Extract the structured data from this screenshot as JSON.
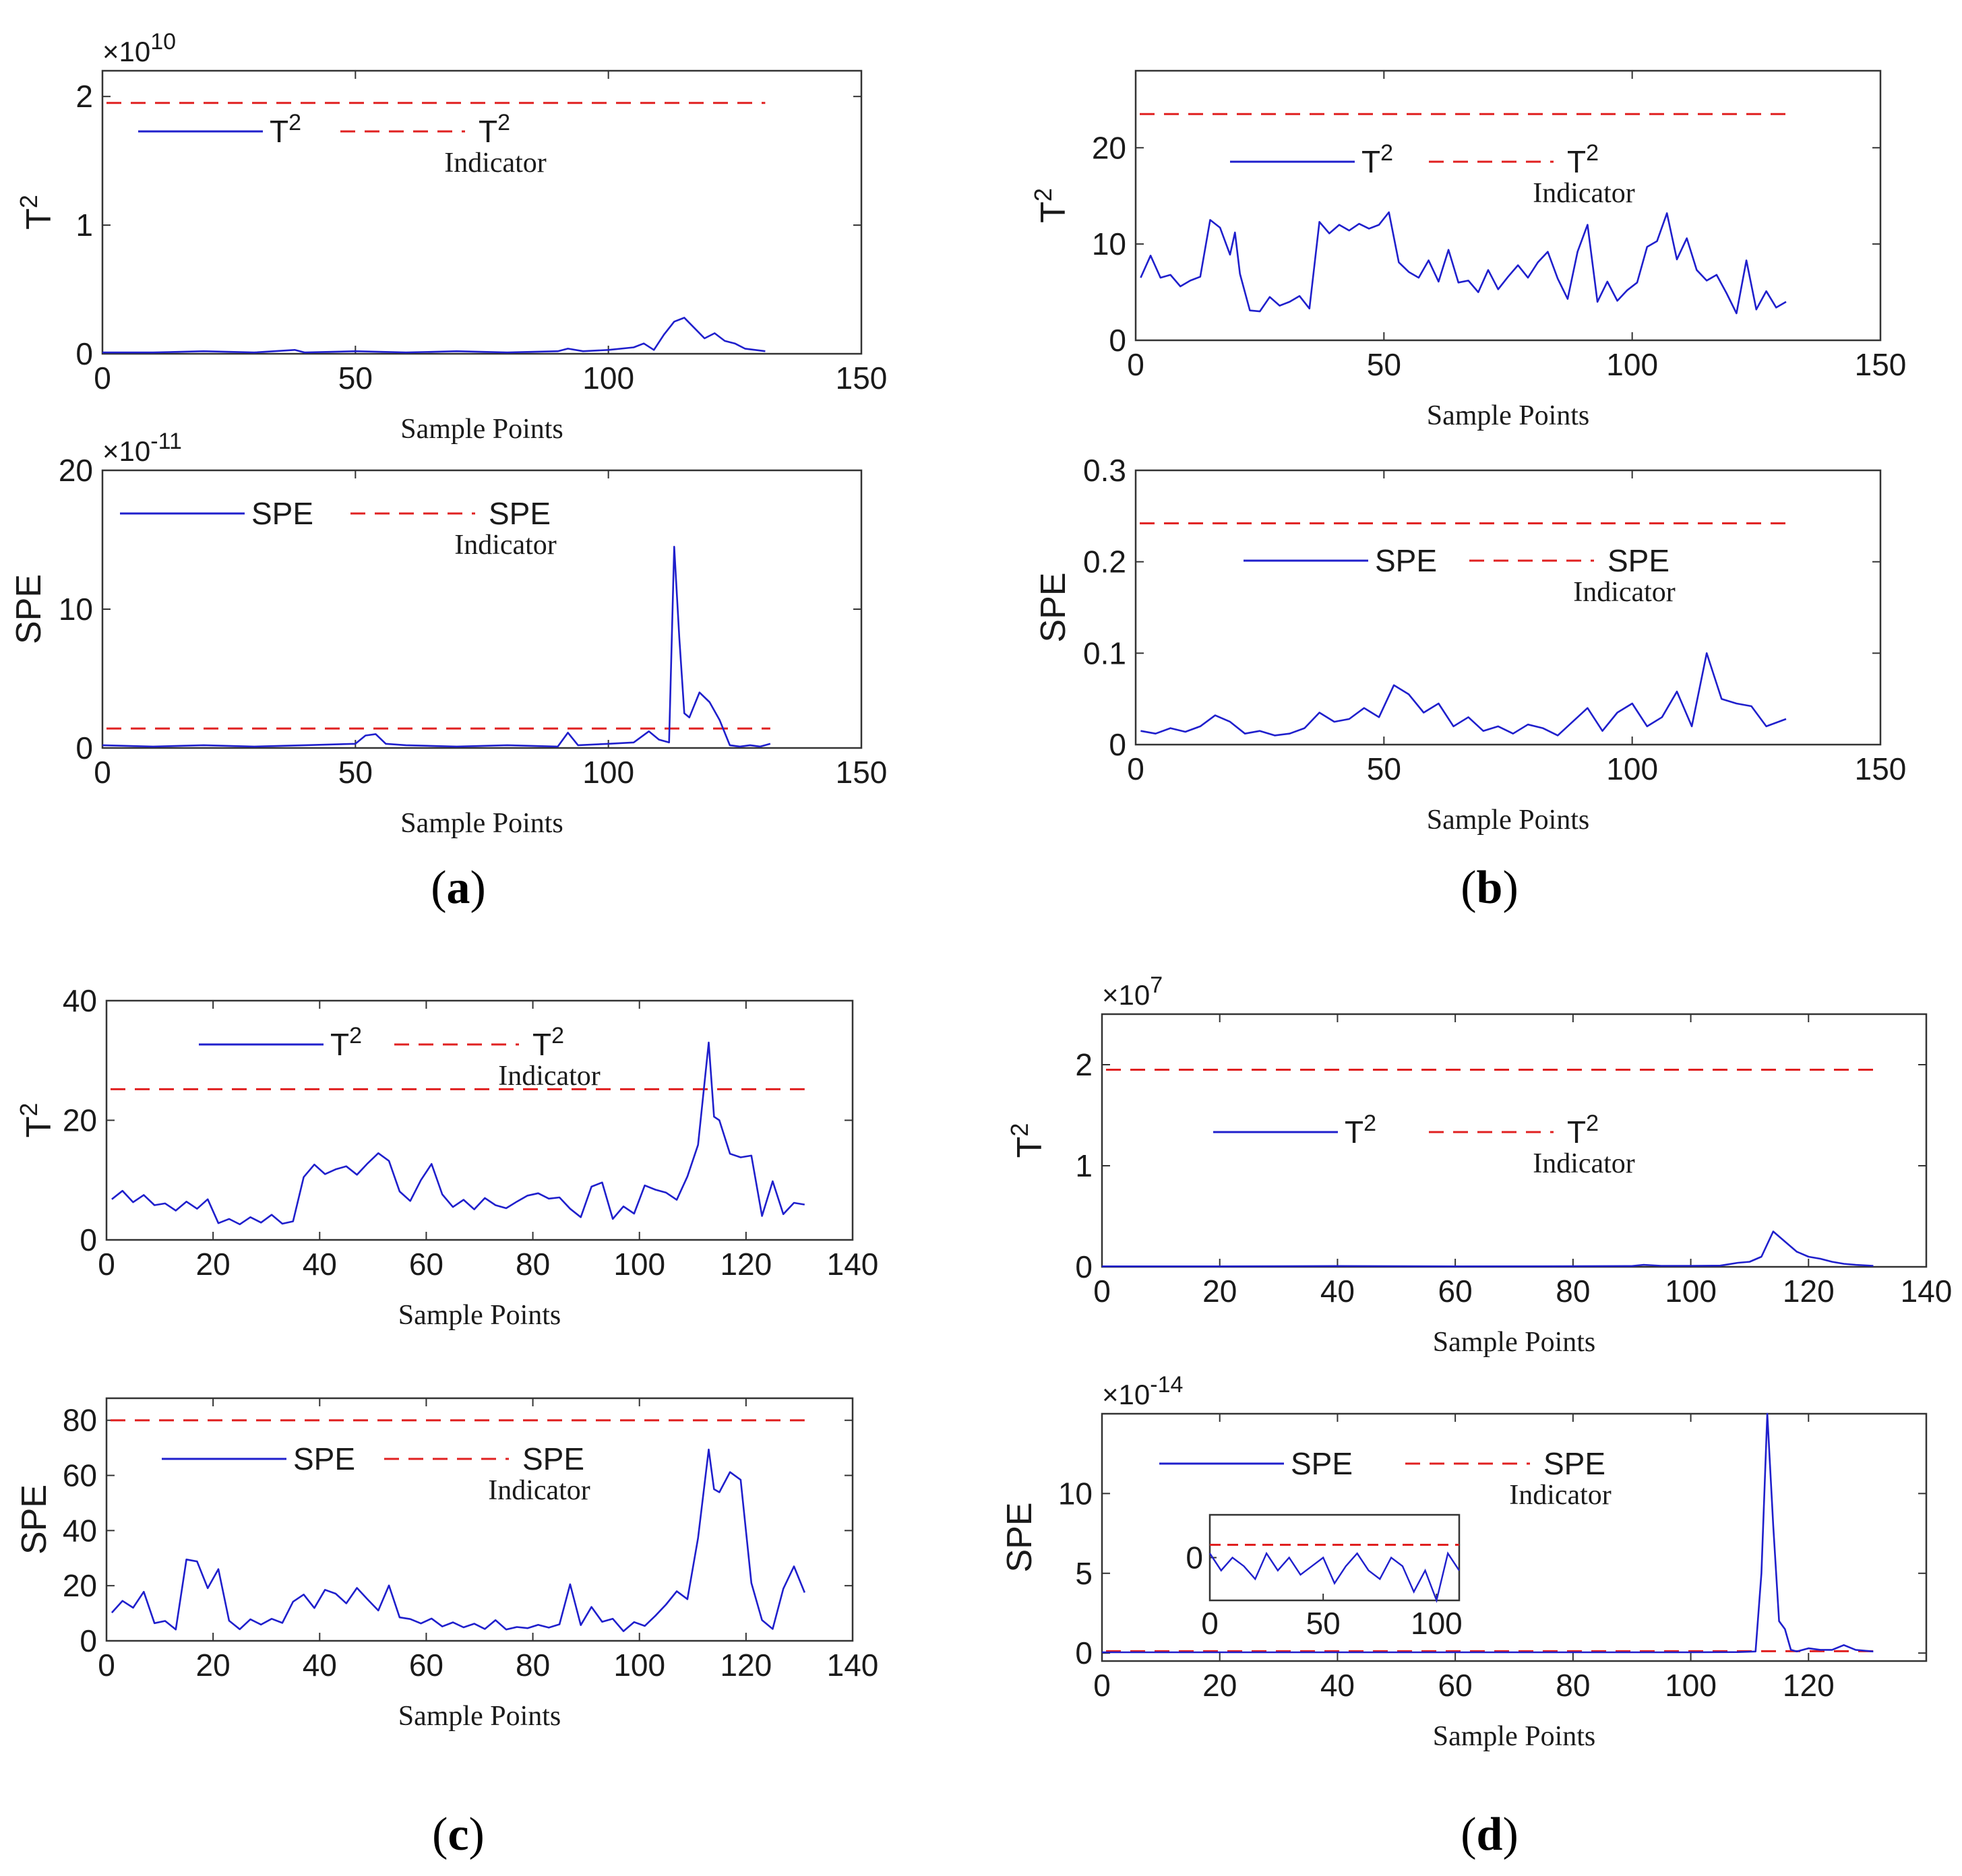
{
  "panel_labels": [
    "a",
    "b",
    "c",
    "d"
  ],
  "colors": {
    "series": "#1f1fcc",
    "indicator": "#e02020",
    "axis": "#333333"
  },
  "chart_data": [
    {
      "type": "line",
      "panel": "a",
      "exponent": "10",
      "xlabel": "Sample Points",
      "ylabel_base": "T",
      "ylabel_sup": "2",
      "xlim": [
        0,
        150
      ],
      "ylim": [
        0,
        2.2
      ],
      "xticks": [
        0,
        50,
        100,
        150
      ],
      "yticks": [
        0,
        1,
        2
      ],
      "legend": {
        "series_base": "T",
        "series_sup": "2",
        "indicator_base": "T",
        "indicator_sup": "2",
        "indicator_sub": "Indicator"
      },
      "series": [
        {
          "name": "T2",
          "x": [
            0,
            10,
            20,
            30,
            38,
            40,
            50,
            60,
            70,
            80,
            90,
            92,
            95,
            100,
            105,
            107,
            109,
            111,
            113,
            115,
            117,
            119,
            121,
            123,
            125,
            127,
            129,
            131
          ],
          "y": [
            0.01,
            0.01,
            0.02,
            0.01,
            0.03,
            0.01,
            0.02,
            0.01,
            0.02,
            0.01,
            0.02,
            0.04,
            0.02,
            0.03,
            0.05,
            0.08,
            0.03,
            0.15,
            0.25,
            0.28,
            0.2,
            0.12,
            0.16,
            0.1,
            0.08,
            0.04,
            0.03,
            0.02
          ]
        }
      ],
      "indicator": 1.95
    },
    {
      "type": "line",
      "panel": "a",
      "exponent": "-11",
      "xlabel": "Sample Points",
      "ylabel_base": "SPE",
      "ylabel_sup": "",
      "xlim": [
        0,
        150
      ],
      "ylim": [
        0,
        20
      ],
      "xticks": [
        0,
        50,
        100,
        150
      ],
      "yticks": [
        0,
        10,
        20
      ],
      "legend": {
        "series_base": "SPE",
        "series_sup": "",
        "indicator_base": "SPE",
        "indicator_sup": "",
        "indicator_sub": "Indicator"
      },
      "series": [
        {
          "name": "SPE",
          "x": [
            0,
            10,
            20,
            30,
            40,
            50,
            52,
            54,
            56,
            60,
            70,
            80,
            90,
            92,
            94,
            100,
            105,
            108,
            110,
            112,
            113,
            114,
            115,
            116,
            118,
            120,
            122,
            124,
            126,
            128,
            130,
            132
          ],
          "y": [
            0.2,
            0.1,
            0.2,
            0.1,
            0.2,
            0.3,
            0.9,
            1.0,
            0.3,
            0.2,
            0.1,
            0.2,
            0.1,
            1.1,
            0.2,
            0.3,
            0.4,
            1.2,
            0.6,
            0.4,
            14.5,
            8.0,
            2.5,
            2.2,
            4.0,
            3.3,
            2.0,
            0.2,
            0.1,
            0.2,
            0.1,
            0.3
          ]
        }
      ],
      "indicator": 1.4
    },
    {
      "type": "line",
      "panel": "b",
      "exponent": "",
      "xlabel": "Sample Points",
      "ylabel_base": "T",
      "ylabel_sup": "2",
      "xlim": [
        0,
        150
      ],
      "ylim": [
        0,
        28
      ],
      "xticks": [
        0,
        50,
        100,
        150
      ],
      "yticks": [
        0,
        10,
        20
      ],
      "legend": {
        "series_base": "T",
        "series_sup": "2",
        "indicator_base": "T",
        "indicator_sup": "2",
        "indicator_sub": "Indicator"
      },
      "series": [
        {
          "name": "T2",
          "x": [
            1,
            3,
            5,
            7,
            9,
            11,
            13,
            15,
            17,
            19,
            20,
            21,
            23,
            25,
            27,
            29,
            31,
            33,
            35,
            37,
            39,
            41,
            43,
            45,
            47,
            49,
            51,
            53,
            55,
            57,
            59,
            61,
            63,
            65,
            67,
            69,
            71,
            73,
            75,
            77,
            79,
            81,
            83,
            85,
            87,
            89,
            91,
            93,
            95,
            97,
            99,
            101,
            103,
            105,
            107,
            109,
            111,
            113,
            115,
            117,
            119,
            121,
            123,
            125,
            127,
            129,
            131
          ],
          "y": [
            6.5,
            8.8,
            6.5,
            6.8,
            5.6,
            6.2,
            6.6,
            12.5,
            11.7,
            8.9,
            11.2,
            6.9,
            3.1,
            3.0,
            4.5,
            3.6,
            4.0,
            4.6,
            3.3,
            12.3,
            11.1,
            12.0,
            11.4,
            12.1,
            11.6,
            12.0,
            13.3,
            8.1,
            7.1,
            6.5,
            8.3,
            6.1,
            9.4,
            6.0,
            6.2,
            5.0,
            7.3,
            5.3,
            6.6,
            7.8,
            6.5,
            8.1,
            9.2,
            6.4,
            4.3,
            9.2,
            12.0,
            4.0,
            6.1,
            4.1,
            5.2,
            6.0,
            9.7,
            10.3,
            13.2,
            8.4,
            10.6,
            7.3,
            6.2,
            6.8,
            4.9,
            2.8,
            8.3,
            3.2,
            5.1,
            3.4,
            4.0
          ]
        }
      ],
      "indicator": 23.5
    },
    {
      "type": "line",
      "panel": "b",
      "exponent": "",
      "xlabel": "Sample Points",
      "ylabel_base": "SPE",
      "ylabel_sup": "",
      "xlim": [
        0,
        150
      ],
      "ylim": [
        0,
        0.3
      ],
      "xticks": [
        0,
        50,
        100,
        150
      ],
      "yticks": [
        0,
        0.1,
        0.2,
        0.3
      ],
      "legend": {
        "series_base": "SPE",
        "series_sup": "",
        "indicator_base": "SPE",
        "indicator_sup": "",
        "indicator_sub": "Indicator"
      },
      "series": [
        {
          "name": "SPE",
          "x": [
            1,
            4,
            7,
            10,
            13,
            16,
            19,
            22,
            25,
            28,
            31,
            34,
            37,
            40,
            43,
            46,
            49,
            52,
            55,
            58,
            61,
            64,
            67,
            70,
            73,
            76,
            79,
            82,
            85,
            88,
            91,
            94,
            97,
            100,
            103,
            106,
            109,
            112,
            115,
            118,
            121,
            124,
            127,
            131
          ],
          "y": [
            0.015,
            0.012,
            0.018,
            0.014,
            0.02,
            0.032,
            0.025,
            0.012,
            0.015,
            0.01,
            0.012,
            0.018,
            0.035,
            0.025,
            0.028,
            0.04,
            0.03,
            0.065,
            0.055,
            0.035,
            0.045,
            0.02,
            0.03,
            0.015,
            0.02,
            0.012,
            0.022,
            0.018,
            0.01,
            0.025,
            0.04,
            0.015,
            0.035,
            0.045,
            0.02,
            0.03,
            0.058,
            0.02,
            0.1,
            0.05,
            0.045,
            0.042,
            0.02,
            0.028
          ]
        }
      ],
      "indicator": 0.242
    },
    {
      "type": "line",
      "panel": "c",
      "exponent": "",
      "xlabel": "Sample Points",
      "ylabel_base": "T",
      "ylabel_sup": "2",
      "xlim": [
        0,
        140
      ],
      "ylim": [
        0,
        40
      ],
      "xticks": [
        0,
        20,
        40,
        60,
        80,
        100,
        120,
        140
      ],
      "yticks": [
        0,
        20,
        40
      ],
      "legend": {
        "series_base": "T",
        "series_sup": "2",
        "indicator_base": "T",
        "indicator_sup": "2",
        "indicator_sub": "Indicator"
      },
      "series": [
        {
          "name": "T2",
          "x": [
            1,
            3,
            5,
            7,
            9,
            11,
            13,
            15,
            17,
            19,
            21,
            23,
            25,
            27,
            29,
            31,
            33,
            35,
            37,
            39,
            41,
            43,
            45,
            47,
            49,
            51,
            53,
            55,
            57,
            59,
            61,
            63,
            65,
            67,
            69,
            71,
            73,
            75,
            77,
            79,
            81,
            83,
            85,
            87,
            89,
            91,
            93,
            95,
            97,
            99,
            101,
            103,
            105,
            107,
            109,
            111,
            113,
            114,
            115,
            117,
            119,
            121,
            123,
            125,
            127,
            129,
            131
          ],
          "y": [
            6.8,
            8.2,
            6.3,
            7.5,
            5.8,
            6.1,
            4.9,
            6.4,
            5.2,
            6.8,
            2.8,
            3.5,
            2.6,
            3.8,
            2.9,
            4.2,
            2.7,
            3.1,
            10.5,
            12.6,
            11.0,
            11.8,
            12.3,
            10.9,
            12.8,
            14.5,
            13.2,
            8.1,
            6.5,
            10.0,
            12.7,
            7.6,
            5.5,
            6.7,
            5.1,
            7.0,
            5.8,
            5.3,
            6.4,
            7.4,
            7.8,
            6.9,
            7.1,
            5.2,
            3.8,
            8.9,
            9.6,
            3.5,
            5.6,
            4.4,
            9.1,
            8.4,
            7.9,
            6.7,
            10.6,
            15.9,
            33.0,
            20.6,
            20.0,
            14.4,
            13.8,
            14.1,
            4.0,
            9.8,
            4.3,
            6.2,
            5.9
          ]
        }
      ],
      "indicator": 25.2
    },
    {
      "type": "line",
      "panel": "c",
      "exponent": "",
      "xlabel": "Sample Points",
      "ylabel_base": "SPE",
      "ylabel_sup": "",
      "xlim": [
        0,
        140
      ],
      "ylim": [
        0,
        88
      ],
      "xticks": [
        0,
        20,
        40,
        60,
        80,
        100,
        120,
        140
      ],
      "yticks": [
        0,
        20,
        40,
        60,
        80
      ],
      "legend": {
        "series_base": "SPE",
        "series_sup": "",
        "indicator_base": "SPE",
        "indicator_sup": "",
        "indicator_sub": "Indicator"
      },
      "series": [
        {
          "name": "SPE",
          "x": [
            1,
            3,
            5,
            7,
            9,
            11,
            13,
            15,
            17,
            19,
            21,
            23,
            25,
            27,
            29,
            31,
            33,
            35,
            37,
            39,
            41,
            43,
            45,
            47,
            49,
            51,
            53,
            55,
            57,
            59,
            61,
            63,
            65,
            67,
            69,
            71,
            73,
            75,
            77,
            79,
            81,
            83,
            85,
            87,
            89,
            91,
            93,
            95,
            97,
            99,
            101,
            103,
            105,
            107,
            109,
            111,
            113,
            114,
            115,
            117,
            119,
            121,
            123,
            125,
            127,
            129,
            131
          ],
          "y": [
            10.2,
            14.5,
            12.0,
            17.8,
            6.4,
            7.2,
            4.1,
            29.5,
            28.8,
            19.1,
            26.0,
            7.3,
            4.2,
            7.8,
            5.9,
            8.0,
            6.5,
            14.2,
            16.8,
            11.9,
            18.5,
            17.1,
            13.6,
            19.2,
            15.0,
            11.0,
            20.1,
            8.5,
            7.9,
            6.3,
            8.1,
            5.2,
            6.7,
            4.9,
            6.2,
            4.3,
            7.5,
            4.1,
            5.0,
            4.6,
            5.8,
            4.8,
            6.0,
            20.5,
            5.7,
            12.3,
            6.9,
            8.0,
            3.5,
            6.8,
            5.4,
            9.1,
            13.2,
            18.0,
            15.1,
            37.3,
            69.4,
            55.0,
            53.9,
            61.2,
            58.4,
            21.0,
            7.5,
            4.3,
            18.9,
            27.0,
            17.5
          ]
        }
      ],
      "indicator": 80
    },
    {
      "type": "line",
      "panel": "d",
      "exponent": "7",
      "xlabel": "Sample Points",
      "ylabel_base": "T",
      "ylabel_sup": "2",
      "xlim": [
        0,
        140
      ],
      "ylim": [
        0,
        2.5
      ],
      "xticks": [
        0,
        20,
        40,
        60,
        80,
        100,
        120,
        140
      ],
      "yticks": [
        0,
        1,
        2
      ],
      "legend": {
        "series_base": "T",
        "series_sup": "2",
        "indicator_base": "T",
        "indicator_sup": "2",
        "indicator_sub": "Indicator"
      },
      "series": [
        {
          "name": "T2",
          "x": [
            0,
            20,
            40,
            60,
            80,
            90,
            92,
            95,
            100,
            105,
            108,
            110,
            112,
            114,
            116,
            118,
            120,
            122,
            124,
            126,
            128,
            131
          ],
          "y": [
            0.005,
            0.005,
            0.008,
            0.005,
            0.006,
            0.008,
            0.02,
            0.01,
            0.01,
            0.012,
            0.04,
            0.05,
            0.1,
            0.35,
            0.25,
            0.15,
            0.1,
            0.08,
            0.05,
            0.03,
            0.02,
            0.01
          ]
        }
      ],
      "indicator": 1.95
    },
    {
      "type": "line",
      "panel": "d",
      "exponent": "-14",
      "xlabel": "Sample Points",
      "ylabel_base": "SPE",
      "ylabel_sup": "",
      "xlim": [
        0,
        140
      ],
      "ylim": [
        -0.5,
        15
      ],
      "xticks": [
        0,
        20,
        40,
        60,
        80,
        100,
        120
      ],
      "yticks": [
        0,
        5,
        10
      ],
      "legend": {
        "series_base": "SPE",
        "series_sup": "",
        "indicator_base": "SPE",
        "indicator_sup": "",
        "indicator_sub": "Indicator"
      },
      "series": [
        {
          "name": "SPE",
          "x": [
            0,
            20,
            40,
            60,
            80,
            100,
            108,
            111,
            112,
            113,
            114,
            115,
            116,
            117,
            118,
            120,
            122,
            124,
            126,
            128,
            131
          ],
          "y": [
            0.05,
            0.05,
            0.05,
            0.05,
            0.05,
            0.05,
            0.06,
            0.1,
            5.0,
            15.0,
            8.0,
            2.0,
            1.5,
            0.2,
            0.1,
            0.3,
            0.2,
            0.2,
            0.5,
            0.2,
            0.1
          ]
        }
      ],
      "indicator": 0.12,
      "inset": {
        "xlim": [
          0,
          110
        ],
        "ylim": [
          -1,
          1
        ],
        "xticks": [
          0,
          50,
          100
        ],
        "yticks": [
          0
        ],
        "series_x": [
          0,
          5,
          10,
          15,
          20,
          25,
          30,
          35,
          40,
          45,
          50,
          55,
          60,
          65,
          70,
          75,
          80,
          85,
          90,
          95,
          100,
          105,
          110
        ],
        "series_y": [
          0.1,
          -0.3,
          0.0,
          -0.2,
          -0.5,
          0.1,
          -0.3,
          0.0,
          -0.4,
          -0.2,
          0.0,
          -0.6,
          -0.2,
          0.1,
          -0.3,
          -0.5,
          0.0,
          -0.2,
          -0.8,
          -0.3,
          -1.0,
          0.1,
          -0.3
        ],
        "indicator": 0.3
      }
    }
  ]
}
